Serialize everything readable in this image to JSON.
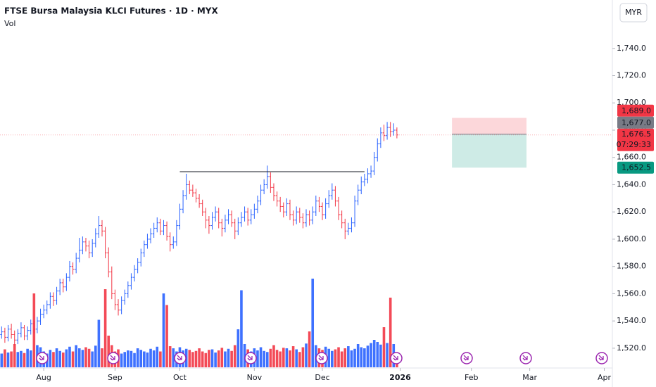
{
  "chart_data": {
    "type": "ohlc",
    "title": "FTSE Bursa Malaysia KLCI Futures · 1D · MYX",
    "volume_title": "Vol",
    "currency": "MYR",
    "up_color": "#2962ff",
    "down_color": "#f23645",
    "grid": false,
    "xlim": [
      -0.5,
      188.5
    ],
    "xticks": [
      {
        "value": 13,
        "label": "Aug"
      },
      {
        "value": 35,
        "label": "Sep"
      },
      {
        "value": 55,
        "label": "Oct"
      },
      {
        "value": 78,
        "label": "Nov"
      },
      {
        "value": 99,
        "label": "Dec"
      },
      {
        "value": 123,
        "label": "2026"
      },
      {
        "value": 145,
        "label": "Feb"
      },
      {
        "value": 163,
        "label": "Mar"
      },
      {
        "value": 186,
        "label": "Apr"
      }
    ],
    "ylim": [
      1506,
      1775.5
    ],
    "yticks": [
      {
        "value": 1520,
        "label": "1,520.0"
      },
      {
        "value": 1540,
        "label": "1,540.0"
      },
      {
        "value": 1560,
        "label": "1,560.0"
      },
      {
        "value": 1580,
        "label": "1,580.0"
      },
      {
        "value": 1600,
        "label": "1,600.0"
      },
      {
        "value": 1620,
        "label": "1,620.0"
      },
      {
        "value": 1640,
        "label": "1,640.0"
      },
      {
        "value": 1660,
        "label": "1,660.0"
      },
      {
        "value": 1680,
        "label": "1,680.0"
      },
      {
        "value": 1700,
        "label": "1,700.0"
      },
      {
        "value": 1720,
        "label": "1,720.0"
      },
      {
        "value": 1740,
        "label": "1,740.0"
      }
    ],
    "volume_lim": [
      0,
      20000
    ],
    "x": [
      0,
      1,
      2,
      3,
      4,
      5,
      6,
      7,
      8,
      9,
      10,
      11,
      12,
      13,
      14,
      15,
      16,
      17,
      18,
      19,
      20,
      21,
      22,
      23,
      24,
      25,
      26,
      27,
      28,
      29,
      30,
      31,
      32,
      33,
      34,
      35,
      36,
      37,
      38,
      39,
      40,
      41,
      42,
      43,
      44,
      45,
      46,
      47,
      48,
      49,
      50,
      51,
      52,
      53,
      54,
      55,
      56,
      57,
      58,
      59,
      60,
      61,
      62,
      63,
      64,
      65,
      66,
      67,
      68,
      69,
      70,
      71,
      72,
      73,
      74,
      75,
      76,
      77,
      78,
      79,
      80,
      81,
      82,
      83,
      84,
      85,
      86,
      87,
      88,
      89,
      90,
      91,
      92,
      93,
      94,
      95,
      96,
      97,
      98,
      99,
      100,
      101,
      102,
      103,
      104,
      105,
      106,
      107,
      108,
      109,
      110,
      111,
      112,
      113,
      114,
      115,
      116,
      117,
      118,
      119,
      120,
      121,
      122
    ],
    "ohlc": [
      [
        1530,
        1536,
        1527,
        1532
      ],
      [
        1532,
        1535,
        1524,
        1528
      ],
      [
        1528,
        1537,
        1525,
        1534
      ],
      [
        1534,
        1538,
        1527,
        1530
      ],
      [
        1530,
        1533,
        1522,
        1526
      ],
      [
        1526,
        1534,
        1523,
        1531
      ],
      [
        1531,
        1539,
        1528,
        1535
      ],
      [
        1535,
        1537,
        1526,
        1529
      ],
      [
        1529,
        1536,
        1526,
        1533
      ],
      [
        1533,
        1541,
        1530,
        1538
      ],
      [
        1538,
        1540,
        1531,
        1534
      ],
      [
        1534,
        1543,
        1531,
        1540
      ],
      [
        1540,
        1549,
        1537,
        1545
      ],
      [
        1545,
        1552,
        1542,
        1548
      ],
      [
        1548,
        1555,
        1545,
        1552
      ],
      [
        1552,
        1561,
        1549,
        1558
      ],
      [
        1558,
        1561,
        1551,
        1555
      ],
      [
        1555,
        1565,
        1552,
        1562
      ],
      [
        1562,
        1571,
        1559,
        1568
      ],
      [
        1568,
        1571,
        1561,
        1565
      ],
      [
        1565,
        1575,
        1562,
        1572
      ],
      [
        1572,
        1584,
        1569,
        1580
      ],
      [
        1580,
        1583,
        1574,
        1578
      ],
      [
        1578,
        1590,
        1575,
        1586
      ],
      [
        1586,
        1601,
        1583,
        1592
      ],
      [
        1592,
        1602,
        1589,
        1598
      ],
      [
        1598,
        1601,
        1591,
        1595
      ],
      [
        1595,
        1599,
        1586,
        1590
      ],
      [
        1590,
        1600,
        1587,
        1597
      ],
      [
        1597,
        1608,
        1594,
        1604
      ],
      [
        1604,
        1617,
        1601,
        1610
      ],
      [
        1610,
        1614,
        1602,
        1606
      ],
      [
        1606,
        1609,
        1586,
        1590
      ],
      [
        1590,
        1594,
        1572,
        1576
      ],
      [
        1576,
        1580,
        1556,
        1560
      ],
      [
        1560,
        1563,
        1548,
        1552
      ],
      [
        1552,
        1556,
        1544,
        1548
      ],
      [
        1548,
        1558,
        1545,
        1555
      ],
      [
        1555,
        1563,
        1552,
        1560
      ],
      [
        1560,
        1569,
        1557,
        1566
      ],
      [
        1566,
        1575,
        1563,
        1572
      ],
      [
        1572,
        1581,
        1569,
        1578
      ],
      [
        1578,
        1586,
        1575,
        1583
      ],
      [
        1583,
        1593,
        1580,
        1590
      ],
      [
        1590,
        1599,
        1587,
        1596
      ],
      [
        1596,
        1604,
        1593,
        1600
      ],
      [
        1600,
        1608,
        1597,
        1604
      ],
      [
        1604,
        1612,
        1601,
        1608
      ],
      [
        1608,
        1616,
        1605,
        1612
      ],
      [
        1612,
        1615,
        1603,
        1606
      ],
      [
        1606,
        1614,
        1603,
        1610
      ],
      [
        1610,
        1613,
        1599,
        1602
      ],
      [
        1602,
        1605,
        1591,
        1596
      ],
      [
        1596,
        1602,
        1593,
        1598
      ],
      [
        1598,
        1614,
        1595,
        1610
      ],
      [
        1610,
        1626,
        1607,
        1622
      ],
      [
        1622,
        1636,
        1619,
        1632
      ],
      [
        1632,
        1648,
        1629,
        1640
      ],
      [
        1640,
        1643,
        1633,
        1636
      ],
      [
        1636,
        1640,
        1631,
        1634
      ],
      [
        1634,
        1637,
        1627,
        1630
      ],
      [
        1630,
        1633,
        1623,
        1626
      ],
      [
        1626,
        1629,
        1617,
        1620
      ],
      [
        1620,
        1623,
        1608,
        1614
      ],
      [
        1614,
        1617,
        1604,
        1610
      ],
      [
        1610,
        1620,
        1607,
        1616
      ],
      [
        1616,
        1624,
        1613,
        1620
      ],
      [
        1620,
        1623,
        1608,
        1612
      ],
      [
        1612,
        1615,
        1602,
        1608
      ],
      [
        1608,
        1618,
        1605,
        1614
      ],
      [
        1614,
        1622,
        1611,
        1618
      ],
      [
        1618,
        1621,
        1609,
        1612
      ],
      [
        1612,
        1615,
        1600,
        1606
      ],
      [
        1606,
        1616,
        1603,
        1612
      ],
      [
        1612,
        1620,
        1609,
        1616
      ],
      [
        1616,
        1624,
        1613,
        1620
      ],
      [
        1620,
        1623,
        1610,
        1614
      ],
      [
        1614,
        1622,
        1611,
        1618
      ],
      [
        1618,
        1626,
        1615,
        1622
      ],
      [
        1622,
        1632,
        1619,
        1628
      ],
      [
        1628,
        1640,
        1625,
        1636
      ],
      [
        1636,
        1644,
        1633,
        1640
      ],
      [
        1640,
        1654,
        1637,
        1646
      ],
      [
        1646,
        1649,
        1634,
        1638
      ],
      [
        1638,
        1641,
        1628,
        1632
      ],
      [
        1632,
        1635,
        1624,
        1628
      ],
      [
        1628,
        1631,
        1620,
        1624
      ],
      [
        1624,
        1627,
        1616,
        1620
      ],
      [
        1620,
        1630,
        1617,
        1626
      ],
      [
        1626,
        1629,
        1614,
        1618
      ],
      [
        1618,
        1621,
        1610,
        1614
      ],
      [
        1614,
        1624,
        1611,
        1620
      ],
      [
        1620,
        1623,
        1612,
        1616
      ],
      [
        1616,
        1619,
        1608,
        1612
      ],
      [
        1612,
        1622,
        1609,
        1618
      ],
      [
        1618,
        1621,
        1610,
        1614
      ],
      [
        1614,
        1624,
        1611,
        1620
      ],
      [
        1620,
        1632,
        1617,
        1628
      ],
      [
        1628,
        1631,
        1620,
        1624
      ],
      [
        1624,
        1627,
        1614,
        1618
      ],
      [
        1618,
        1630,
        1615,
        1626
      ],
      [
        1626,
        1636,
        1623,
        1632
      ],
      [
        1632,
        1641,
        1629,
        1636
      ],
      [
        1636,
        1639,
        1624,
        1628
      ],
      [
        1628,
        1631,
        1614,
        1618
      ],
      [
        1618,
        1621,
        1608,
        1612
      ],
      [
        1612,
        1615,
        1600,
        1606
      ],
      [
        1606,
        1612,
        1603,
        1608
      ],
      [
        1608,
        1616,
        1605,
        1612
      ],
      [
        1612,
        1632,
        1609,
        1628
      ],
      [
        1628,
        1640,
        1625,
        1636
      ],
      [
        1636,
        1646,
        1633,
        1642
      ],
      [
        1642,
        1648,
        1639,
        1644
      ],
      [
        1644,
        1652,
        1641,
        1648
      ],
      [
        1648,
        1654,
        1645,
        1650
      ],
      [
        1650,
        1664,
        1647,
        1660
      ],
      [
        1660,
        1674,
        1657,
        1670
      ],
      [
        1670,
        1682,
        1667,
        1678
      ],
      [
        1678,
        1684,
        1672,
        1676
      ],
      [
        1676,
        1686,
        1673,
        1682
      ],
      [
        1682,
        1686,
        1675,
        1679
      ],
      [
        1679,
        1685,
        1676,
        1680
      ],
      [
        1680,
        1682,
        1674,
        1676.5
      ]
    ],
    "volume": [
      2600,
      3400,
      2800,
      3000,
      4400,
      2900,
      3100,
      2700,
      3500,
      3200,
      14000,
      4200,
      3800,
      3000,
      2600,
      3300,
      2900,
      3600,
      3100,
      2800,
      3400,
      3900,
      3000,
      4200,
      3600,
      3300,
      3800,
      3500,
      3000,
      4100,
      9000,
      3600,
      14800,
      6000,
      4200,
      3000,
      3400,
      2600,
      2900,
      3200,
      3100,
      2700,
      3600,
      3300,
      3000,
      2800,
      3500,
      3200,
      3900,
      3000,
      14000,
      11800,
      4000,
      3600,
      3000,
      3800,
      3200,
      3500,
      3300,
      2900,
      3100,
      3600,
      3000,
      2700,
      3300,
      3400,
      2800,
      3200,
      3700,
      3000,
      3500,
      3100,
      4200,
      7200,
      14600,
      4400,
      3400,
      3000,
      3600,
      3200,
      3800,
      3100,
      2900,
      3500,
      4200,
      3300,
      3000,
      3700,
      3600,
      3200,
      4000,
      3400,
      2900,
      3800,
      4500,
      6800,
      16800,
      4200,
      3600,
      3300,
      3900,
      3500,
      3100,
      3400,
      3800,
      3000,
      3600,
      4000,
      3200,
      3500,
      4400,
      3800,
      3600,
      4100,
      4600,
      5200,
      4800,
      4300,
      7600,
      4600,
      13200,
      4400,
      2400
    ],
    "trendline": {
      "price": 1649.5,
      "x": [
        55,
        112
      ],
      "color": "#131722"
    },
    "position": {
      "x": [
        139,
        162
      ],
      "stop": 1689,
      "entry": 1677,
      "target": 1652.5
    },
    "price_labels": [
      {
        "value": 1689,
        "label": "1,689.0",
        "color": "#f23645"
      },
      {
        "value": 1677,
        "label": "1,677.0",
        "color": "#787b86"
      },
      {
        "value": 1652.5,
        "label": "1,652.5",
        "color": "#089981"
      }
    ],
    "last_price": {
      "value": 1676.5,
      "label": "1,676.5",
      "countdown": "07:29:33",
      "color": "#f23645"
    }
  }
}
